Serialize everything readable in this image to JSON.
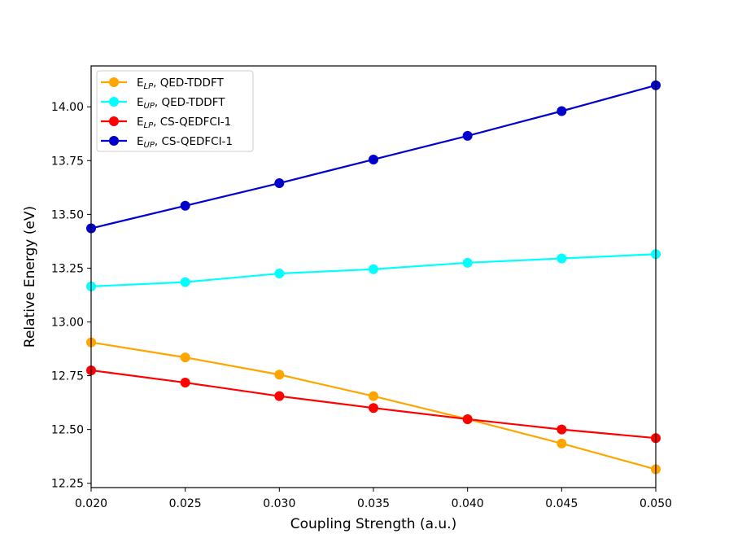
{
  "chart_data": {
    "type": "line",
    "xlabel": "Coupling Strength (a.u.)",
    "ylabel": "Relative Energy (eV)",
    "xlim": [
      0.02,
      0.05
    ],
    "ylim": [
      12.23,
      14.19
    ],
    "x": [
      0.02,
      0.025,
      0.03,
      0.035,
      0.04,
      0.045,
      0.05
    ],
    "xtick_labels": [
      "0.020",
      "0.025",
      "0.030",
      "0.035",
      "0.040",
      "0.045",
      "0.050"
    ],
    "yticks": [
      12.25,
      12.5,
      12.75,
      13.0,
      13.25,
      13.5,
      13.75,
      14.0
    ],
    "ytick_labels": [
      "12.25",
      "12.50",
      "12.75",
      "13.00",
      "13.25",
      "13.50",
      "13.75",
      "14.00"
    ],
    "grid": false,
    "legend_position": "top-left",
    "series": [
      {
        "name": "E",
        "sub": "LP",
        "method": ", QED-TDDFT",
        "color": "#ffa500",
        "values": [
          12.905,
          12.835,
          12.755,
          12.655,
          12.548,
          12.435,
          12.315
        ]
      },
      {
        "name": "E",
        "sub": "UP",
        "method": ", QED-TDDFT",
        "color": "#00ffff",
        "values": [
          13.165,
          13.185,
          13.225,
          13.245,
          13.275,
          13.295,
          13.315
        ]
      },
      {
        "name": "E",
        "sub": "LP",
        "method": ", CS-QEDFCI-1",
        "color": "#ff0000",
        "values": [
          12.775,
          12.718,
          12.655,
          12.6,
          12.548,
          12.5,
          12.46
        ]
      },
      {
        "name": "E",
        "sub": "UP",
        "method": ", CS-QEDFCI-1",
        "color": "#0000cd",
        "values": [
          13.435,
          13.54,
          13.645,
          13.755,
          13.865,
          13.98,
          14.1
        ]
      }
    ]
  }
}
